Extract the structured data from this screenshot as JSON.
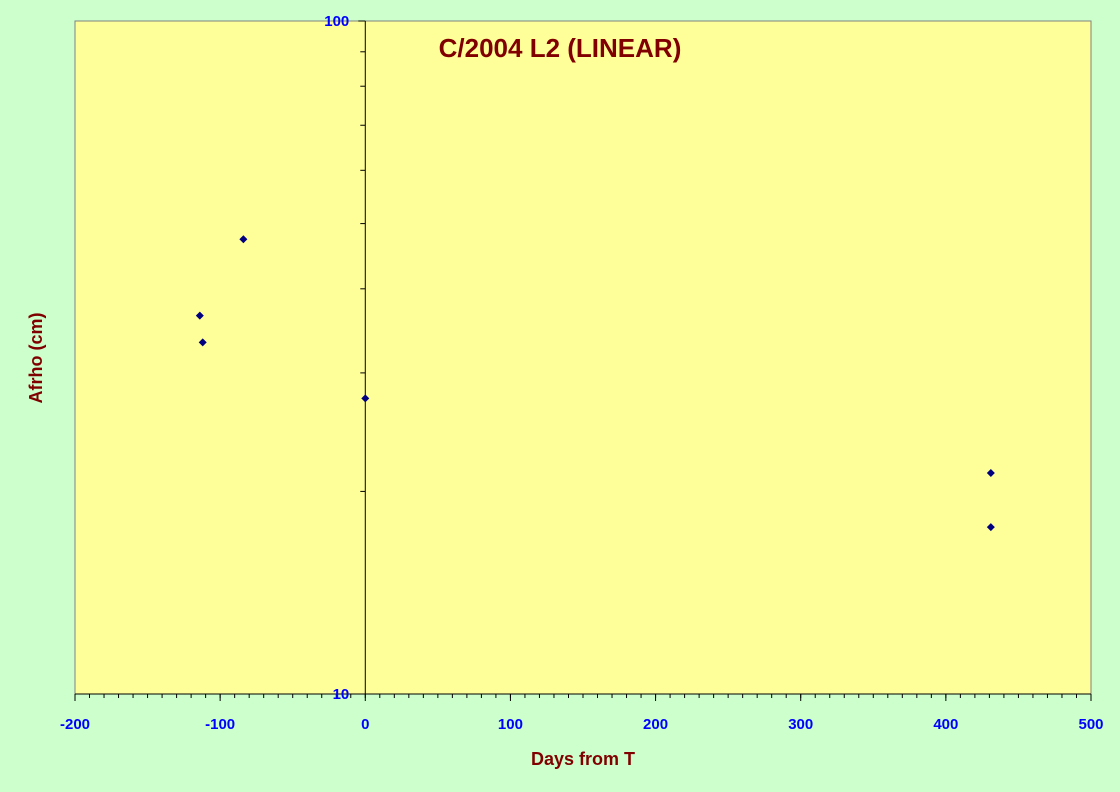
{
  "chart_data": {
    "type": "scatter",
    "title": "C/2004 L2 (LINEAR)",
    "xlabel": "Days from T",
    "ylabel": "Afrho (cm)",
    "xlim": [
      -200,
      500
    ],
    "ylim": [
      10,
      100
    ],
    "yscale": "log",
    "xticks": [
      -200,
      -100,
      0,
      100,
      200,
      300,
      400,
      500
    ],
    "xtick_labels": [
      "-200",
      "-100",
      "0",
      "100",
      "200",
      "300",
      "400",
      "500"
    ],
    "yticks": [
      10,
      100
    ],
    "ytick_labels": [
      "10",
      "100"
    ],
    "grid": false,
    "legend": "none",
    "series": [
      {
        "x": [
          -114,
          -112,
          -84,
          0,
          431,
          431
        ],
        "y": [
          36.5,
          33.3,
          47.4,
          27.5,
          21.3,
          17.7
        ]
      }
    ],
    "colors": {
      "page_background": "#ccffcc",
      "plot_background": "#ffff99",
      "marker": "#000080",
      "tick_labels": "#0000ff",
      "titles": "#800000"
    }
  }
}
